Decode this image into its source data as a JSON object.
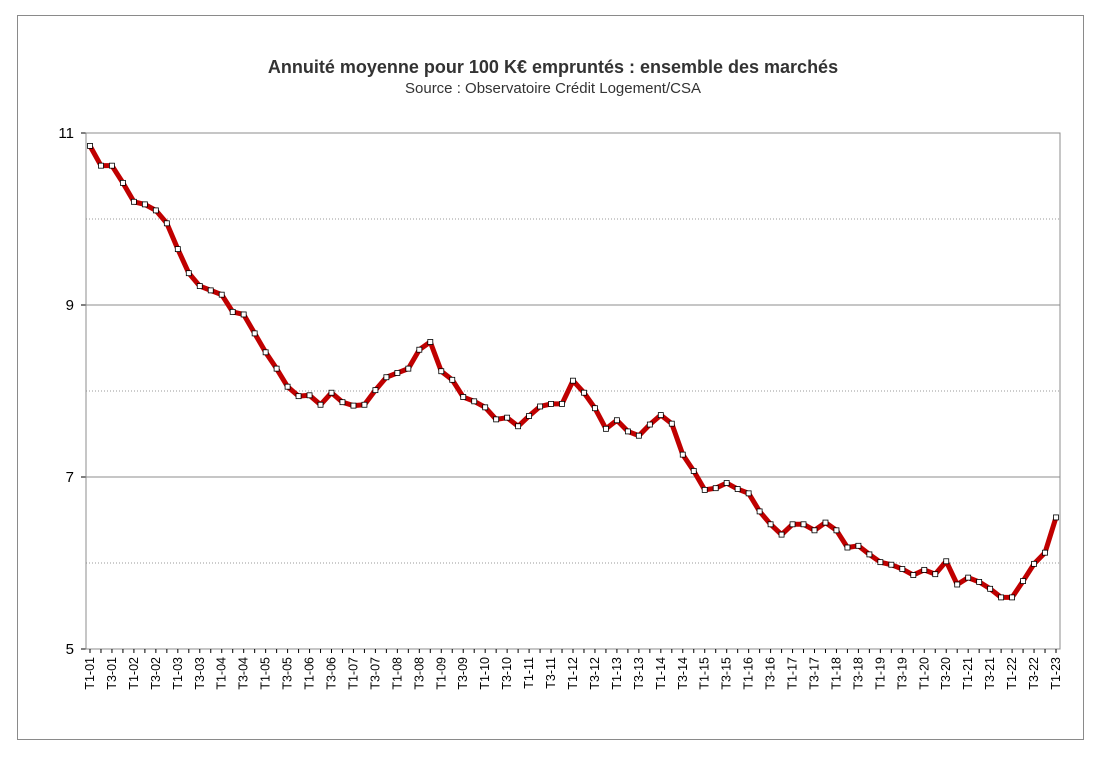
{
  "chart_data": {
    "type": "line",
    "title": "Annuité moyenne pour 100 K€ empruntés : ensemble des marchés",
    "subtitle": "Source : Observatoire Crédit Logement/CSA",
    "xlabel": "",
    "ylabel": "",
    "ylim": [
      5,
      11
    ],
    "yticks": [
      5,
      7,
      9,
      11
    ],
    "grid_minor": [
      6,
      8,
      10
    ],
    "grid": true,
    "legend": "none",
    "line_color": "#c00000",
    "marker_color": "#ffffff",
    "tick_labels": [
      "T1-01",
      "T3-01",
      "T1-02",
      "T3-02",
      "T1-03",
      "T3-03",
      "T1-04",
      "T3-04",
      "T1-05",
      "T3-05",
      "T1-06",
      "T3-06",
      "T1-07",
      "T3-07",
      "T1-08",
      "T3-08",
      "T1-09",
      "T3-09",
      "T1-10",
      "T3-10",
      "T1-11",
      "T3-11",
      "T1-12",
      "T3-12",
      "T1-13",
      "T3-13",
      "T1-14",
      "T3-14",
      "T1-15",
      "T3-15",
      "T1-16",
      "T3-16",
      "T1-17",
      "T3-17",
      "T1-18",
      "T3-18",
      "T1-19",
      "T3-19",
      "T1-20",
      "T3-20",
      "T1-21",
      "T3-21",
      "T1-22",
      "T3-22",
      "T1-23"
    ],
    "values": [
      10.85,
      10.62,
      10.62,
      10.42,
      10.2,
      10.17,
      10.1,
      9.95,
      9.65,
      9.37,
      9.22,
      9.17,
      9.12,
      8.92,
      8.89,
      8.67,
      8.45,
      8.26,
      8.05,
      7.94,
      7.95,
      7.84,
      7.98,
      7.87,
      7.83,
      7.84,
      8.01,
      8.16,
      8.21,
      8.26,
      8.48,
      8.57,
      8.23,
      8.13,
      7.93,
      7.88,
      7.81,
      7.67,
      7.69,
      7.59,
      7.71,
      7.82,
      7.85,
      7.85,
      8.12,
      7.98,
      7.8,
      7.56,
      7.66,
      7.53,
      7.48,
      7.61,
      7.72,
      7.62,
      7.26,
      7.07,
      6.85,
      6.87,
      6.93,
      6.86,
      6.81,
      6.6,
      6.45,
      6.33,
      6.45,
      6.45,
      6.38,
      6.47,
      6.38,
      6.18,
      6.2,
      6.1,
      6.01,
      5.98,
      5.93,
      5.86,
      5.92,
      5.87,
      6.02,
      5.75,
      5.83,
      5.78,
      5.7,
      5.6,
      5.6,
      5.79,
      5.99,
      6.12,
      6.53
    ]
  }
}
